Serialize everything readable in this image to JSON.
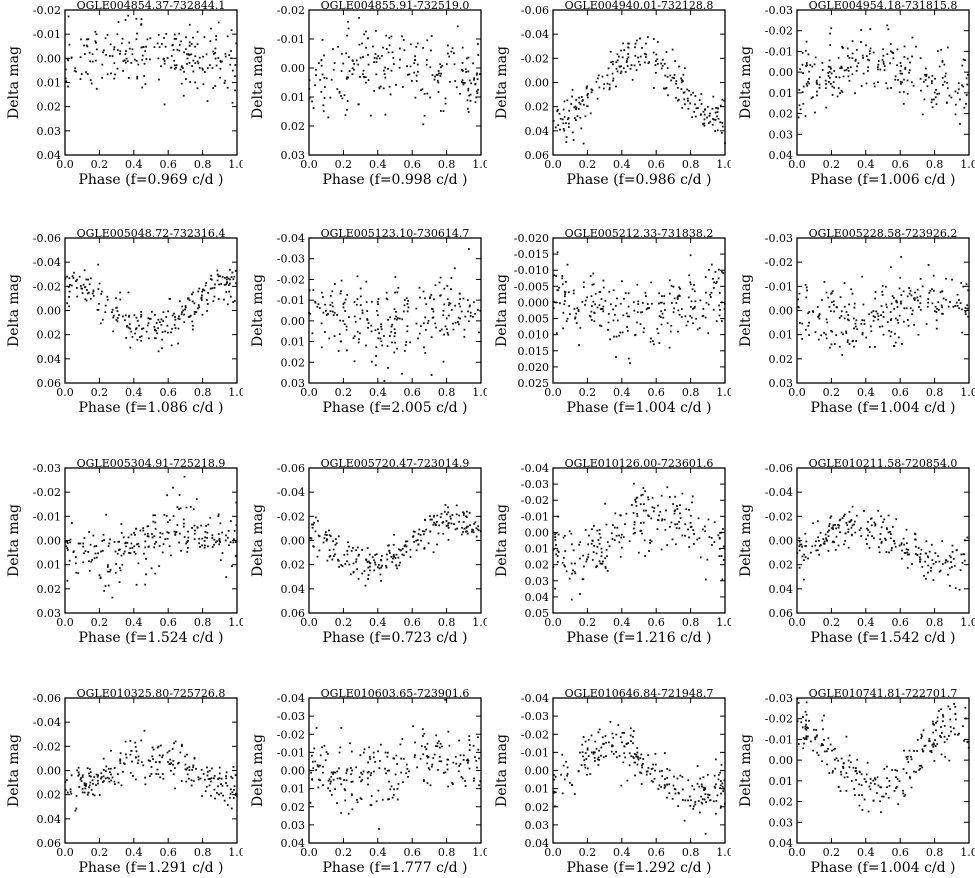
{
  "figure": {
    "ylabel": "Delta mag",
    "xlabel_prefix": "Phase (f=",
    "xlabel_suffix": " c/d )",
    "x_ticks": [
      "0.0",
      "0.2",
      "0.4",
      "0.6",
      "0.8",
      "1.0"
    ]
  },
  "chart_data": [
    {
      "type": "scatter",
      "title": "OGLE004854.37-732844.1",
      "freq": "0.969",
      "xlabel": "Phase (f=0.969 c/d )",
      "ylabel": "Delta mag",
      "xlim": [
        0,
        1
      ],
      "ylim": [
        -0.02,
        0.04
      ],
      "y_inverted": true,
      "y_ticks": [
        "-0.02",
        "-0.01",
        "0.00",
        "0.01",
        "0.02",
        "0.03",
        "0.04"
      ],
      "profile": {
        "type": "sine",
        "base": 0.0,
        "amp": 0.002,
        "center": 0.5
      },
      "scatter_sd": 0.007,
      "n_points": 230
    },
    {
      "type": "scatter",
      "title": "OGLE004855.91-732519.0",
      "freq": "0.998",
      "xlabel": "Phase (f=0.998 c/d )",
      "ylabel": "Delta mag",
      "xlim": [
        0,
        1
      ],
      "ylim": [
        -0.02,
        0.03
      ],
      "y_inverted": true,
      "y_ticks": [
        "-0.02",
        "-0.01",
        "0.00",
        "0.01",
        "0.02",
        "0.03"
      ],
      "profile": {
        "type": "sine",
        "base": 0.001,
        "amp": 0.003,
        "center": 0.5
      },
      "scatter_sd": 0.007,
      "n_points": 230
    },
    {
      "type": "scatter",
      "title": "OGLE004940.01-732128.8",
      "freq": "0.986",
      "xlabel": "Phase (f=0.986 c/d )",
      "ylabel": "Delta mag",
      "xlim": [
        0,
        1
      ],
      "ylim": [
        -0.06,
        0.06
      ],
      "y_inverted": true,
      "y_ticks": [
        "-0.06",
        "-0.04",
        "-0.02",
        "0.00",
        "0.02",
        "0.04",
        "0.06"
      ],
      "profile": {
        "type": "sine",
        "base": 0.005,
        "amp": 0.028,
        "center": 0.5
      },
      "scatter_sd": 0.009,
      "n_points": 240
    },
    {
      "type": "scatter",
      "title": "OGLE004954.18-731815.8",
      "freq": "1.006",
      "xlabel": "Phase (f=1.006 c/d )",
      "ylabel": "Delta mag",
      "xlim": [
        0,
        1
      ],
      "ylim": [
        -0.03,
        0.04
      ],
      "y_inverted": true,
      "y_ticks": [
        "-0.03",
        "-0.02",
        "-0.01",
        "0.00",
        "0.01",
        "0.02",
        "0.03",
        "0.04"
      ],
      "profile": {
        "type": "sine",
        "base": 0.001,
        "amp": 0.006,
        "center": 0.45
      },
      "scatter_sd": 0.008,
      "n_points": 240
    },
    {
      "type": "scatter",
      "title": "OGLE005048.72-732316.4",
      "freq": "1.086",
      "xlabel": "Phase (f=1.086 c/d )",
      "ylabel": "Delta mag",
      "xlim": [
        0,
        1
      ],
      "ylim": [
        -0.06,
        0.06
      ],
      "y_inverted": true,
      "y_ticks": [
        "-0.06",
        "-0.04",
        "-0.02",
        "0.00",
        "0.02",
        "0.04",
        "0.06"
      ],
      "profile": {
        "type": "sine",
        "base": -0.004,
        "amp": -0.018,
        "center": 0.5
      },
      "scatter_sd": 0.009,
      "n_points": 240
    },
    {
      "type": "scatter",
      "title": "OGLE005123.10-730614.7",
      "freq": "2.005",
      "xlabel": "Phase (f=2.005 c/d )",
      "ylabel": "Delta mag",
      "xlim": [
        0,
        1
      ],
      "ylim": [
        -0.04,
        0.03
      ],
      "y_inverted": true,
      "y_ticks": [
        "-0.04",
        "-0.03",
        "-0.02",
        "-0.01",
        "0.00",
        "0.01",
        "0.02",
        "0.03"
      ],
      "profile": {
        "type": "sine",
        "base": -0.002,
        "amp": -0.004,
        "center": 0.45
      },
      "scatter_sd": 0.009,
      "n_points": 240
    },
    {
      "type": "scatter",
      "title": "OGLE005212.33-731838.2",
      "freq": "1.004",
      "xlabel": "Phase (f=1.004 c/d )",
      "ylabel": "Delta mag",
      "xlim": [
        0,
        1
      ],
      "ylim": [
        -0.02,
        0.025
      ],
      "y_inverted": true,
      "y_ticks": [
        "-0.020",
        "-0.015",
        "-0.010",
        "-0.005",
        "0.000",
        "0.005",
        "0.010",
        "0.015",
        "0.020",
        "0.025"
      ],
      "profile": {
        "type": "sine",
        "base": 0.001,
        "amp": -0.003,
        "center": 0.5
      },
      "scatter_sd": 0.005,
      "n_points": 240
    },
    {
      "type": "scatter",
      "title": "OGLE005228.58-723926.2",
      "freq": "1.004",
      "xlabel": "Phase (f=1.004 c/d )",
      "ylabel": "Delta mag",
      "xlim": [
        0,
        1
      ],
      "ylim": [
        -0.03,
        0.03
      ],
      "y_inverted": true,
      "y_ticks": [
        "-0.03",
        "-0.02",
        "-0.01",
        "0.00",
        "0.01",
        "0.02",
        "0.03"
      ],
      "profile": {
        "type": "sine",
        "base": 0.0,
        "amp": -0.004,
        "center": 0.35
      },
      "scatter_sd": 0.007,
      "n_points": 240
    },
    {
      "type": "scatter",
      "title": "OGLE005304.91-725218.9",
      "freq": "1.524",
      "xlabel": "Phase (f=1.524 c/d )",
      "ylabel": "Delta mag",
      "xlim": [
        0,
        1
      ],
      "ylim": [
        -0.03,
        0.03
      ],
      "y_inverted": true,
      "y_ticks": [
        "-0.03",
        "-0.02",
        "-0.01",
        "0.00",
        "0.01",
        "0.02",
        "0.03"
      ],
      "profile": {
        "type": "sine",
        "base": 0.001,
        "amp": 0.005,
        "center": 0.7
      },
      "scatter_sd": 0.006,
      "n_points": 240
    },
    {
      "type": "scatter",
      "title": "OGLE005720.47-723014.9",
      "freq": "0.723",
      "xlabel": "Phase (f=0.723 c/d )",
      "ylabel": "Delta mag",
      "xlim": [
        0,
        1
      ],
      "ylim": [
        -0.06,
        0.06
      ],
      "y_inverted": true,
      "y_ticks": [
        "-0.06",
        "-0.04",
        "-0.02",
        "0.00",
        "0.02",
        "0.04",
        "0.06"
      ],
      "profile": {
        "type": "sine",
        "base": 0.002,
        "amp": -0.018,
        "center": 0.35
      },
      "scatter_sd": 0.008,
      "n_points": 240
    },
    {
      "type": "scatter",
      "title": "OGLE010126.00-723601.6",
      "freq": "1.216",
      "xlabel": "Phase (f=1.216 c/d )",
      "ylabel": "Delta mag",
      "xlim": [
        0,
        1
      ],
      "ylim": [
        -0.04,
        0.05
      ],
      "y_inverted": true,
      "y_ticks": [
        "-0.04",
        "-0.03",
        "-0.02",
        "-0.01",
        "0.00",
        "0.01",
        "0.02",
        "0.03",
        "0.04",
        "0.05"
      ],
      "profile": {
        "type": "sine",
        "base": 0.002,
        "amp": 0.013,
        "center": 0.62
      },
      "scatter_sd": 0.01,
      "n_points": 230
    },
    {
      "type": "scatter",
      "title": "OGLE010211.58-720854.0",
      "freq": "1.542",
      "xlabel": "Phase (f=1.542 c/d )",
      "ylabel": "Delta mag",
      "xlim": [
        0,
        1
      ],
      "ylim": [
        -0.06,
        0.06
      ],
      "y_inverted": true,
      "y_ticks": [
        "-0.06",
        "-0.04",
        "-0.02",
        "0.00",
        "0.02",
        "0.04",
        "0.06"
      ],
      "profile": {
        "type": "sine",
        "base": 0.003,
        "amp": 0.016,
        "center": 0.35
      },
      "scatter_sd": 0.009,
      "n_points": 230
    },
    {
      "type": "scatter",
      "title": "OGLE010325.80-725726.8",
      "freq": "1.291",
      "xlabel": "Phase (f=1.291 c/d )",
      "ylabel": "Delta mag",
      "xlim": [
        0,
        1
      ],
      "ylim": [
        -0.06,
        0.06
      ],
      "y_inverted": true,
      "y_ticks": [
        "-0.06",
        "-0.04",
        "-0.02",
        "0.00",
        "0.02",
        "0.04",
        "0.06"
      ],
      "profile": {
        "type": "sine",
        "base": 0.002,
        "amp": 0.012,
        "center": 0.5
      },
      "scatter_sd": 0.009,
      "n_points": 240
    },
    {
      "type": "scatter",
      "title": "OGLE010603.65-723901.6",
      "freq": "1.777",
      "xlabel": "Phase (f=1.777 c/d )",
      "ylabel": "Delta mag",
      "xlim": [
        0,
        1
      ],
      "ylim": [
        -0.04,
        0.04
      ],
      "y_inverted": true,
      "y_ticks": [
        "-0.04",
        "-0.03",
        "-0.02",
        "-0.01",
        "0.00",
        "0.01",
        "0.02",
        "0.03",
        "0.04"
      ],
      "profile": {
        "type": "sine",
        "base": -0.002,
        "amp": -0.008,
        "center": 0.3
      },
      "scatter_sd": 0.01,
      "n_points": 230
    },
    {
      "type": "scatter",
      "title": "OGLE010646.84-721948.7",
      "freq": "1.292",
      "xlabel": "Phase (f=1.292 c/d )",
      "ylabel": "Delta mag",
      "xlim": [
        0,
        1
      ],
      "ylim": [
        -0.04,
        0.04
      ],
      "y_inverted": true,
      "y_ticks": [
        "-0.04",
        "-0.03",
        "-0.02",
        "-0.01",
        "0.00",
        "0.01",
        "0.02",
        "0.03",
        "0.04"
      ],
      "profile": {
        "type": "sine",
        "base": 0.001,
        "amp": 0.014,
        "center": 0.35
      },
      "scatter_sd": 0.007,
      "n_points": 240
    },
    {
      "type": "scatter",
      "title": "OGLE010741.81-722701.7",
      "freq": "1.004",
      "xlabel": "Phase (f=1.004 c/d )",
      "ylabel": "Delta mag",
      "xlim": [
        0,
        1
      ],
      "ylim": [
        -0.03,
        0.04
      ],
      "y_inverted": true,
      "y_ticks": [
        "-0.03",
        "-0.02",
        "-0.01",
        "0.00",
        "0.01",
        "0.02",
        "0.03",
        "0.04"
      ],
      "profile": {
        "type": "sine",
        "base": -0.002,
        "amp": -0.016,
        "center": 0.45
      },
      "scatter_sd": 0.006,
      "n_points": 240
    }
  ]
}
